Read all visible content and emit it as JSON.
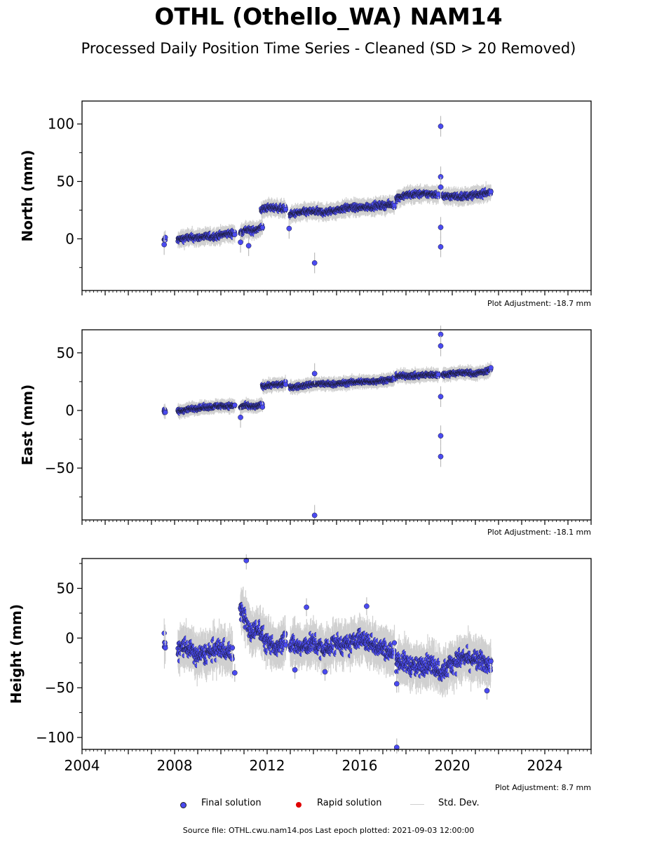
{
  "page": {
    "title": "OTHL (Othello_WA) NAM14",
    "subtitle": "Processed Daily Position Time Series - Cleaned (SD > 20 Removed)",
    "source": "Source file: OTHL.cwu.nam14.pos  Last epoch plotted: 2021-09-03 12:00:00"
  },
  "legend": {
    "final_label": "Final solution",
    "rapid_label": "Rapid solution",
    "std_label": "Std. Dev.",
    "final_color": "#4a4af0",
    "rapid_color": "#e00000",
    "std_color": "#d0d0d0"
  },
  "chart_data": [
    {
      "type": "scatter",
      "ylabel": "North (mm)",
      "adjustment": "Plot Adjustment: -18.7 mm",
      "xlim": [
        2004,
        2026
      ],
      "ylim": [
        -45,
        120
      ],
      "yticks": [
        0,
        50,
        100
      ],
      "x_tick_labels": [],
      "segments": [
        {
          "x": [
            2007.55,
            2007.6
          ],
          "y": [
            -2,
            0
          ]
        },
        {
          "x": [
            2008.15,
            2008.6,
            2009.0,
            2009.4,
            2009.8,
            2010.2,
            2010.6
          ],
          "y": [
            -1,
            1,
            1,
            2,
            2,
            4,
            5
          ]
        },
        {
          "x": [
            2010.85,
            2011.1,
            2011.4,
            2011.8
          ],
          "y": [
            5,
            8,
            7,
            10
          ]
        },
        {
          "x": [
            2011.75,
            2012.0,
            2012.4,
            2012.8
          ],
          "y": [
            25,
            27,
            27,
            26
          ]
        },
        {
          "x": [
            2013.0,
            2013.5,
            2014.0,
            2014.5,
            2015.0,
            2015.5,
            2016.0,
            2016.5,
            2017.0,
            2017.5
          ],
          "y": [
            21,
            23,
            24,
            23,
            25,
            27,
            27,
            28,
            29,
            30
          ]
        },
        {
          "x": [
            2017.6,
            2018.0,
            2018.5,
            2019.0,
            2019.4
          ],
          "y": [
            35,
            38,
            39,
            39,
            39
          ]
        },
        {
          "x": [
            2019.6,
            2020.0,
            2020.5,
            2021.0,
            2021.5,
            2021.67
          ],
          "y": [
            37,
            37,
            37,
            38,
            40,
            41
          ]
        }
      ],
      "noise": 2.5,
      "outliers": [
        {
          "x": 2007.55,
          "y": -5
        },
        {
          "x": 2010.85,
          "y": -3
        },
        {
          "x": 2011.2,
          "y": -6
        },
        {
          "x": 2012.95,
          "y": 9
        },
        {
          "x": 2014.05,
          "y": -21
        },
        {
          "x": 2019.5,
          "y": 98
        },
        {
          "x": 2019.5,
          "y": 54
        },
        {
          "x": 2019.5,
          "y": 45
        },
        {
          "x": 2019.5,
          "y": 10
        },
        {
          "x": 2019.5,
          "y": -7
        }
      ]
    },
    {
      "type": "scatter",
      "ylabel": "East (mm)",
      "adjustment": "Plot Adjustment: -18.1 mm",
      "xlim": [
        2004,
        2026
      ],
      "ylim": [
        -95,
        70
      ],
      "yticks": [
        -50,
        0,
        50
      ],
      "x_tick_labels": [],
      "segments": [
        {
          "x": [
            2007.55,
            2007.6
          ],
          "y": [
            -1,
            -1
          ]
        },
        {
          "x": [
            2008.15,
            2008.6,
            2009.0,
            2009.5,
            2010.0,
            2010.6
          ],
          "y": [
            -1,
            1,
            2,
            3,
            4,
            4
          ]
        },
        {
          "x": [
            2010.85,
            2011.1,
            2011.5,
            2011.8
          ],
          "y": [
            3,
            4,
            3,
            5
          ]
        },
        {
          "x": [
            2011.8,
            2012.2,
            2012.8
          ],
          "y": [
            21,
            22,
            23
          ]
        },
        {
          "x": [
            2013.0,
            2013.5,
            2014.0,
            2014.5,
            2015.0,
            2015.5,
            2016.0,
            2016.5,
            2017.0,
            2017.5
          ],
          "y": [
            20,
            21,
            23,
            23,
            23,
            24,
            25,
            25,
            26,
            27
          ]
        },
        {
          "x": [
            2017.6,
            2018.0,
            2018.5,
            2019.0,
            2019.4
          ],
          "y": [
            30,
            30,
            30,
            31,
            31
          ]
        },
        {
          "x": [
            2019.6,
            2020.0,
            2020.5,
            2021.0,
            2021.5,
            2021.67
          ],
          "y": [
            31,
            32,
            33,
            32,
            34,
            36
          ]
        }
      ],
      "noise": 1.8,
      "outliers": [
        {
          "x": 2010.85,
          "y": -6
        },
        {
          "x": 2014.05,
          "y": 32
        },
        {
          "x": 2014.05,
          "y": -91
        },
        {
          "x": 2019.5,
          "y": 66
        },
        {
          "x": 2019.5,
          "y": 56
        },
        {
          "x": 2019.5,
          "y": 12
        },
        {
          "x": 2019.5,
          "y": -22
        },
        {
          "x": 2019.5,
          "y": -40
        }
      ]
    },
    {
      "type": "scatter",
      "ylabel": "Height (mm)",
      "adjustment": "Plot Adjustment: 8.7 mm",
      "xlim": [
        2004,
        2026
      ],
      "ylim": [
        -112,
        80
      ],
      "yticks": [
        -100,
        -50,
        0,
        50
      ],
      "x_tick_labels": [
        "2004",
        "2008",
        "2012",
        "2016",
        "2020",
        "2024"
      ],
      "segments": [
        {
          "x": [
            2007.55,
            2007.6
          ],
          "y": [
            -5,
            -10
          ]
        },
        {
          "x": [
            2008.15,
            2008.5,
            2009.0,
            2009.5,
            2010.0,
            2010.5
          ],
          "y": [
            -12,
            -8,
            -18,
            -15,
            -10,
            -15
          ]
        },
        {
          "x": [
            2010.85,
            2011.0,
            2011.3,
            2011.7,
            2012.0,
            2012.4,
            2012.8
          ],
          "y": [
            30,
            25,
            5,
            10,
            -5,
            -10,
            0
          ]
        },
        {
          "x": [
            2013.0,
            2013.5,
            2014.0,
            2014.5,
            2015.0,
            2015.5,
            2016.0,
            2016.5,
            2017.0,
            2017.5
          ],
          "y": [
            -5,
            -10,
            -5,
            -12,
            -5,
            -8,
            0,
            -5,
            -10,
            -15
          ]
        },
        {
          "x": [
            2017.6,
            2018.0,
            2018.5,
            2019.0,
            2019.4,
            2019.6,
            2020.0,
            2020.5,
            2021.0,
            2021.5,
            2021.67
          ],
          "y": [
            -22,
            -25,
            -30,
            -25,
            -30,
            -35,
            -25,
            -20,
            -22,
            -25,
            -28
          ]
        }
      ],
      "noise": 9,
      "outliers": [
        {
          "x": 2011.1,
          "y": 78
        },
        {
          "x": 2010.6,
          "y": -35
        },
        {
          "x": 2013.2,
          "y": -32
        },
        {
          "x": 2013.7,
          "y": 31
        },
        {
          "x": 2014.5,
          "y": -34
        },
        {
          "x": 2016.3,
          "y": 32
        },
        {
          "x": 2017.6,
          "y": -46
        },
        {
          "x": 2017.6,
          "y": -110
        },
        {
          "x": 2021.5,
          "y": -53
        }
      ]
    }
  ]
}
